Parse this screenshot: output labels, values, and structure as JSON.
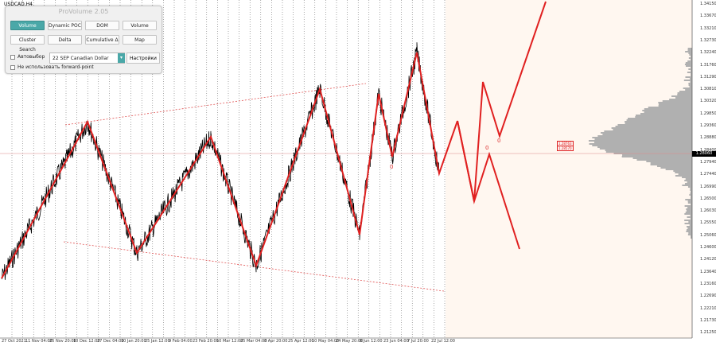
{
  "chart": {
    "symbol": "USDCAD,H4",
    "current_price": "1.28060",
    "price_labels": [
      "1.34150",
      "1.33670",
      "1.33210",
      "1.32730",
      "1.32240",
      "1.31760",
      "1.31290",
      "1.30810",
      "1.30320",
      "1.29850",
      "1.29360",
      "1.28880",
      "1.28400",
      "1.27940",
      "1.27440",
      "1.26990",
      "1.26500",
      "1.26030",
      "1.25550",
      "1.25060",
      "1.24600",
      "1.24120",
      "1.23640",
      "1.23160",
      "1.22690",
      "1.22210",
      "1.21730",
      "1.21250"
    ],
    "time_labels": [
      "27 Oct 2021",
      "11 Nov 04:00",
      "25 Nov 20:00",
      "10 Dec 12:00",
      "27 Dec 04:00",
      "10 Jan 20:00",
      "25 Jan 12:00",
      "9 Feb 04:00",
      "23 Feb 20:00",
      "10 Mar 12:00",
      "25 Mar 04:00",
      "8 Apr 20:00",
      "25 Apr 12:00",
      "10 May 04:00",
      "24 May 20:00",
      "8 Jun 12:00",
      "23 Jun 04:00",
      "7 Jul 20:00",
      "22 Jul 12:00"
    ],
    "level_tags": [
      "1.28763",
      "1.28570"
    ],
    "wave_marks": [
      "0",
      "0",
      "0"
    ],
    "colors": {
      "background": "#fff7f0",
      "zigzag": "#e02020",
      "grid": "#333333",
      "profile": "#b0b0b0"
    }
  },
  "panel": {
    "title": "ProVolume 2.05",
    "buttons": {
      "volume_profile": "Volume Profile",
      "dynamic_poc": "Dynamic POC",
      "dom": "DOM",
      "volume": "Volume",
      "cluster_search": "Cluster Search",
      "delta": "Delta",
      "cumulative_delta": "Cumulative Δ",
      "map": "Map"
    },
    "auto_select_label": "Автовыбор",
    "instrument_value": "22 SEP Canadian Dollar",
    "settings_label": "Настройки",
    "forward_point_label": "Не использовать forward-point"
  }
}
